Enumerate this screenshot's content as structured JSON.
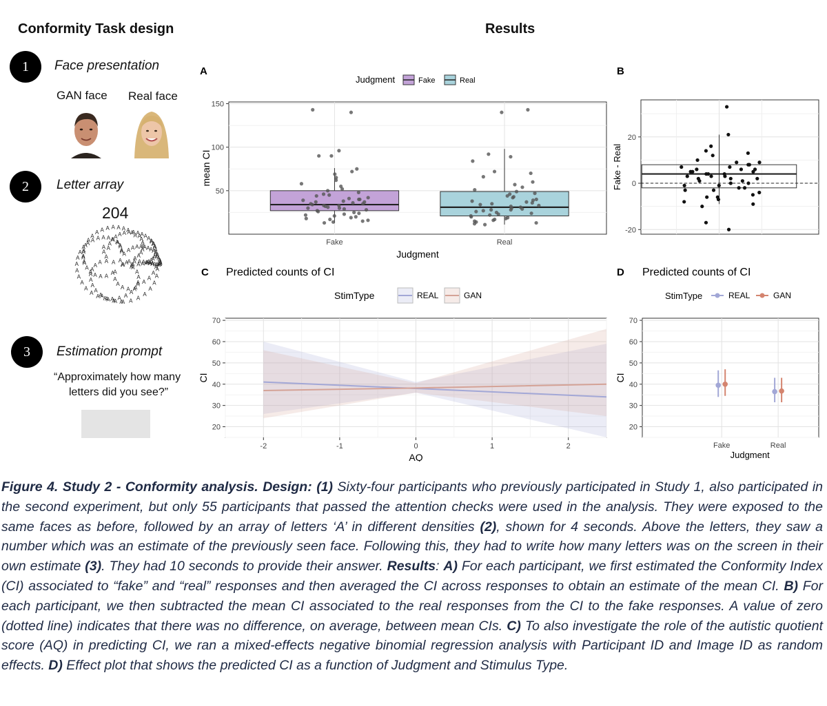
{
  "design": {
    "heading": "Conformity Task design",
    "step1_num": "1",
    "step1_title": "Face presentation",
    "gan_face_label": "GAN face",
    "real_face_label": "Real face",
    "step2_num": "2",
    "step2_title": "Letter array",
    "array_number": "204",
    "step3_num": "3",
    "step3_title": "Estimation prompt",
    "prompt_line1": "“Approximately how many",
    "prompt_line2": "letters did you see?”",
    "letter_glyph": "A"
  },
  "results_heading": "Results",
  "caption": {
    "p1": "Figure 4. Study 2 - Conformity analysis. Design: (1)",
    "t1": " Sixty-four participants who previously participated in Study 1, also participated in the second experiment, but only 55 participants that passed the attention checks were used in the analysis. They were exposed to the same faces as before, followed by an array of letters ‘A’ in different densities ",
    "p2": "(2)",
    "t2": ", shown for 4 seconds. Above the letters, they saw a number which was an estimate of the previously seen face. Following this, they had to write how many letters was on the screen in their own estimate ",
    "p3": "(3)",
    "t3": ". They had 10 seconds to provide their answer. ",
    "p4": "Results",
    "t4": ": ",
    "p5": "A)",
    "t5": " For each participant, we first estimated the Conformity Index (CI) associated to “fake” and “real” responses and then averaged the CI across responses to obtain an estimate of the mean CI. ",
    "p6": "B)",
    "t6": " For each participant, we then subtracted the mean CI associated to the real responses from the CI to the fake responses. A value of zero (dotted line) indicates that there was no difference, on average, between mean CIs. ",
    "p7": "C)",
    "t7": " To also investigate the role of the autistic quotient score (AQ) in predicting CI, we ran a mixed-effects negative binomial regression analysis with Participant ID and Image ID as random effects. ",
    "p8": "D)",
    "t8": " Effect plot that shows the predicted CI as a function of Judgment and Stimulus Type."
  },
  "chart_data": [
    {
      "panel": "A",
      "type": "box",
      "xlabel": "Judgment",
      "ylabel": "mean CI",
      "ylim": [
        0,
        152
      ],
      "yticks": [
        50,
        100,
        150
      ],
      "legend": {
        "title": "Judgment",
        "entries": [
          "Fake",
          "Real"
        ],
        "position": "top"
      },
      "categories": [
        "Fake",
        "Real"
      ],
      "colors": {
        "Fake": "#c3a3d8",
        "Real": "#a9d3dc"
      },
      "boxes": [
        {
          "name": "Fake",
          "whisker_low": 13,
          "q1": 27,
          "median": 34,
          "q3": 50,
          "whisker_high": 76
        },
        {
          "name": "Real",
          "whisker_low": 11,
          "q1": 21,
          "median": 31,
          "q3": 49,
          "whisker_high": 98
        }
      ],
      "points": {
        "Fake": [
          143,
          140,
          96,
          90,
          90,
          75,
          72,
          69,
          65,
          62,
          58,
          55,
          52,
          50,
          48,
          46,
          45,
          44,
          42,
          41,
          40,
          40,
          39,
          38,
          37,
          37,
          36,
          35,
          35,
          34,
          33,
          33,
          32,
          31,
          30,
          30,
          29,
          28,
          27,
          26,
          25,
          24,
          23,
          22,
          21,
          20,
          19,
          18,
          17,
          16,
          15,
          14,
          13
        ],
        "Real": [
          143,
          140,
          92,
          89,
          84,
          72,
          70,
          66,
          60,
          57,
          54,
          51,
          49,
          47,
          46,
          44,
          43,
          42,
          40,
          39,
          38,
          37,
          36,
          35,
          34,
          33,
          32,
          31,
          30,
          29,
          28,
          28,
          27,
          26,
          25,
          24,
          23,
          22,
          21,
          20,
          19,
          18,
          17,
          16,
          15,
          14,
          13,
          12,
          11
        ]
      }
    },
    {
      "panel": "B",
      "type": "box",
      "ylabel": "Fake - Real",
      "ylim": [
        -22,
        36
      ],
      "yticks": [
        -20,
        0,
        20
      ],
      "reference_line": 0,
      "box": {
        "whisker_low": -9,
        "q1": -2,
        "median": 4,
        "q3": 8,
        "whisker_high": 21
      },
      "points": [
        33,
        21,
        16,
        13,
        14,
        12,
        10,
        9,
        9,
        8,
        8,
        7,
        7,
        6,
        6,
        6,
        5,
        5,
        5,
        4,
        4,
        4,
        3,
        3,
        3,
        2,
        2,
        2,
        1,
        1,
        0,
        0,
        -1,
        -1,
        -2,
        -2,
        -3,
        -3,
        -4,
        -5,
        -6,
        -6,
        -7,
        -8,
        -9,
        -10,
        -17,
        -20
      ]
    },
    {
      "panel": "C",
      "type": "line",
      "title": "Predicted counts of CI",
      "xlabel": "AQ",
      "ylabel": "CI",
      "xlim": [
        -2.5,
        2.5
      ],
      "ylim": [
        15,
        71
      ],
      "xticks": [
        -2,
        -1,
        0,
        1,
        2
      ],
      "yticks": [
        20,
        30,
        40,
        50,
        60,
        70
      ],
      "legend": {
        "title": "StimType",
        "position": "top"
      },
      "series": [
        {
          "name": "REAL",
          "color": "#a2a7d6",
          "x": [
            -2,
            0,
            2.5
          ],
          "y": [
            41,
            38,
            34
          ],
          "lower": [
            26,
            36,
            15
          ],
          "upper": [
            60,
            41,
            59
          ]
        },
        {
          "name": "GAN",
          "color": "#d4a296",
          "x": [
            -2,
            0,
            2.5
          ],
          "y": [
            37,
            38.2,
            40
          ],
          "lower": [
            24,
            36,
            25
          ],
          "upper": [
            56,
            40.5,
            66
          ]
        }
      ]
    },
    {
      "panel": "D",
      "type": "errorbar",
      "title": "Predicted counts of CI",
      "xlabel": "Judgment",
      "ylabel": "CI",
      "ylim": [
        15,
        71
      ],
      "yticks": [
        20,
        30,
        40,
        50,
        60,
        70
      ],
      "categories": [
        "Fake",
        "Real"
      ],
      "legend": {
        "title": "StimType",
        "position": "top"
      },
      "series": [
        {
          "name": "REAL",
          "color": "#a2a7d6",
          "y": [
            39.5,
            36.5
          ],
          "lower": [
            34,
            31.5
          ],
          "upper": [
            46.5,
            43
          ]
        },
        {
          "name": "GAN",
          "color": "#d4846f",
          "y": [
            40,
            36.8
          ],
          "lower": [
            34.5,
            31.5
          ],
          "upper": [
            47,
            43
          ]
        }
      ]
    }
  ],
  "panel_letters": {
    "a": "A",
    "b": "B",
    "c": "C",
    "d": "D"
  }
}
